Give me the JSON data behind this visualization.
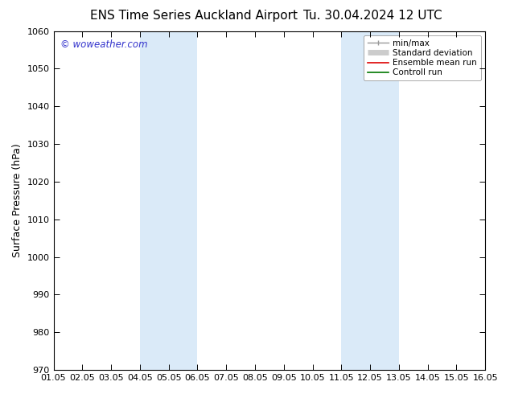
{
  "title_left": "ENS Time Series Auckland Airport",
  "title_right": "Tu. 30.04.2024 12 UTC",
  "ylabel": "Surface Pressure (hPa)",
  "ylim": [
    970,
    1060
  ],
  "yticks": [
    970,
    980,
    990,
    1000,
    1010,
    1020,
    1030,
    1040,
    1050,
    1060
  ],
  "xtick_labels": [
    "01.05",
    "02.05",
    "03.05",
    "04.05",
    "05.05",
    "06.05",
    "07.05",
    "08.05",
    "09.05",
    "10.05",
    "11.05",
    "12.05",
    "13.05",
    "14.05",
    "15.05",
    "16.05"
  ],
  "shaded_regions": [
    {
      "xstart": 3,
      "xend": 5,
      "color": "#daeaf8"
    },
    {
      "xstart": 10,
      "xend": 12,
      "color": "#daeaf8"
    }
  ],
  "legend_entries": [
    {
      "label": "min/max",
      "color": "#999999",
      "lw": 1.0
    },
    {
      "label": "Standard deviation",
      "color": "#cccccc",
      "lw": 5
    },
    {
      "label": "Ensemble mean run",
      "color": "#dd0000",
      "lw": 1.2
    },
    {
      "label": "Controll run",
      "color": "#007700",
      "lw": 1.2
    }
  ],
  "watermark": "© woweather.com",
  "watermark_color": "#3333cc",
  "bg_color": "#ffffff",
  "plot_bg_color": "#ffffff",
  "title_fontsize": 11,
  "tick_fontsize": 8,
  "ylabel_fontsize": 9,
  "legend_fontsize": 7.5
}
